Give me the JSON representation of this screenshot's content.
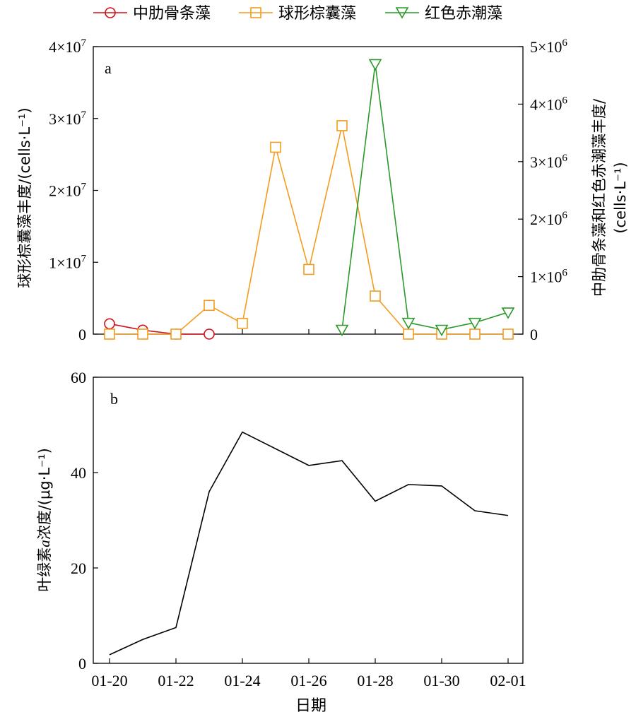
{
  "legend": [
    {
      "name": "中肋骨条藻",
      "color": "#d0121b",
      "marker": "circle-icon"
    },
    {
      "name": "球形棕囊藻",
      "color": "#f39c1e",
      "marker": "square-icon"
    },
    {
      "name": "红色赤潮藻",
      "color": "#2a9a2a",
      "marker": "triangle-down-icon"
    }
  ],
  "chart_data": [
    {
      "type": "line",
      "panel_label": "a",
      "x": [
        "01-20",
        "01-21",
        "01-22",
        "01-23",
        "01-24",
        "01-25",
        "01-26",
        "01-27",
        "01-28",
        "01-29",
        "01-30",
        "01-31",
        "02-01"
      ],
      "ylabel_left": "球形棕囊藻丰度/(cells·L⁻¹)",
      "ylabel_right_line1": "中肋骨条藻和红色赤潮藻丰度/",
      "ylabel_right_line2": "(cells·L⁻¹)",
      "ylim_left": [
        0,
        40000000
      ],
      "ylim_right": [
        0,
        5000000
      ],
      "yticks_left": [
        {
          "value": 0,
          "mant": "0",
          "exp": ""
        },
        {
          "value": 10000000,
          "mant": "1×10",
          "exp": "7"
        },
        {
          "value": 20000000,
          "mant": "2×10",
          "exp": "7"
        },
        {
          "value": 30000000,
          "mant": "3×10",
          "exp": "7"
        },
        {
          "value": 40000000,
          "mant": "4×10",
          "exp": "7"
        }
      ],
      "yticks_right": [
        {
          "value": 0,
          "mant": "0",
          "exp": ""
        },
        {
          "value": 1000000,
          "mant": "1×10",
          "exp": "6"
        },
        {
          "value": 2000000,
          "mant": "2×10",
          "exp": "6"
        },
        {
          "value": 3000000,
          "mant": "3×10",
          "exp": "6"
        },
        {
          "value": 4000000,
          "mant": "4×10",
          "exp": "6"
        },
        {
          "value": 5000000,
          "mant": "5×10",
          "exp": "6"
        }
      ],
      "series": [
        {
          "name": "中肋骨条藻",
          "axis": "right",
          "color": "#d0121b",
          "marker": "circle",
          "points": [
            [
              "01-20",
              180000
            ],
            [
              "01-21",
              70000
            ],
            [
              "01-22",
              0
            ],
            [
              "01-23",
              0
            ]
          ]
        },
        {
          "name": "球形棕囊藻",
          "axis": "left",
          "color": "#f39c1e",
          "marker": "square",
          "points": [
            [
              "01-20",
              0
            ],
            [
              "01-21",
              0
            ],
            [
              "01-22",
              0
            ],
            [
              "01-23",
              4000000
            ],
            [
              "01-24",
              1500000
            ],
            [
              "01-25",
              26000000
            ],
            [
              "01-26",
              9000000
            ],
            [
              "01-27",
              29000000
            ],
            [
              "01-28",
              5300000
            ],
            [
              "01-29",
              0
            ],
            [
              "01-30",
              0
            ],
            [
              "01-31",
              0
            ],
            [
              "02-01",
              0
            ]
          ]
        },
        {
          "name": "红色赤潮藻",
          "axis": "right",
          "color": "#2a9a2a",
          "marker": "triangle-down",
          "points": [
            [
              "01-27",
              80000
            ],
            [
              "01-28",
              4700000
            ],
            [
              "01-29",
              200000
            ],
            [
              "01-30",
              80000
            ],
            [
              "01-31",
              200000
            ],
            [
              "02-01",
              380000
            ]
          ]
        }
      ]
    },
    {
      "type": "line",
      "panel_label": "b",
      "x": [
        "01-20",
        "01-21",
        "01-22",
        "01-23",
        "01-24",
        "01-25",
        "01-26",
        "01-27",
        "01-28",
        "01-29",
        "01-30",
        "01-31",
        "02-01"
      ],
      "xticklabels": [
        "01-20",
        "01-22",
        "01-24",
        "01-26",
        "01-28",
        "01-30",
        "02-01"
      ],
      "xlabel": "日期",
      "ylabel_pre": "叶绿素",
      "ylabel_italic": "a",
      "ylabel_post": "浓度/(μg·L⁻¹)",
      "ylim": [
        0,
        60
      ],
      "yticks": [
        0,
        20,
        40,
        60
      ],
      "series": [
        {
          "name": "叶绿素a",
          "color": "#000000",
          "points": [
            [
              "01-20",
              1.8
            ],
            [
              "01-21",
              5
            ],
            [
              "01-22",
              7.5
            ],
            [
              "01-23",
              36
            ],
            [
              "01-24",
              48.5
            ],
            [
              "01-25",
              45
            ],
            [
              "01-26",
              41.5
            ],
            [
              "01-27",
              42.5
            ],
            [
              "01-28",
              34
            ],
            [
              "01-29",
              37.5
            ],
            [
              "01-30",
              37.2
            ],
            [
              "01-31",
              32
            ],
            [
              "02-01",
              31
            ]
          ]
        }
      ]
    }
  ]
}
